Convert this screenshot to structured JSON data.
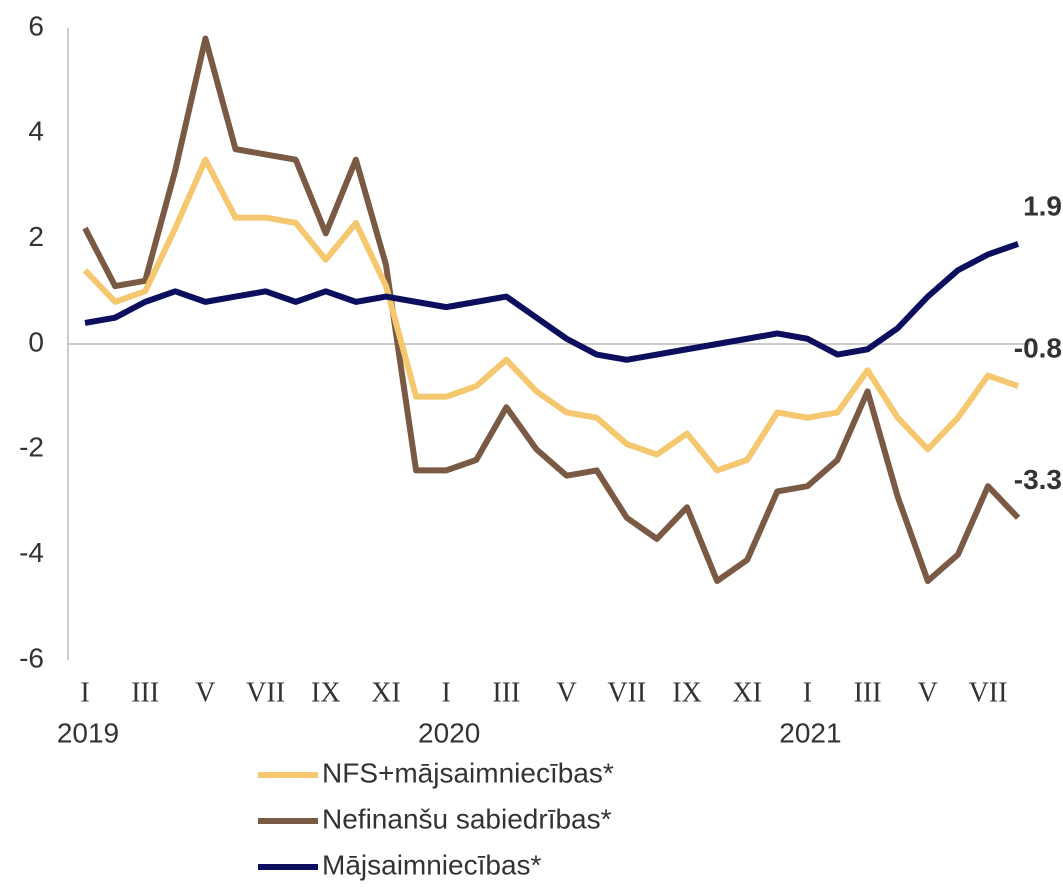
{
  "chart_data": {
    "type": "line",
    "categories": [
      "I",
      null,
      "III",
      null,
      "V",
      null,
      "VII",
      null,
      "IX",
      null,
      "XI",
      null,
      "I",
      null,
      "III",
      null,
      "V",
      null,
      "VII",
      null,
      "IX",
      null,
      "XI",
      null,
      "I",
      null,
      "III",
      null,
      "V",
      null,
      "VII",
      null
    ],
    "year_categories": [
      "2019",
      null,
      null,
      null,
      null,
      null,
      null,
      null,
      null,
      null,
      null,
      null,
      "2020",
      null,
      null,
      null,
      null,
      null,
      null,
      null,
      null,
      null,
      null,
      null,
      "2021",
      null,
      null,
      null,
      null,
      null,
      null,
      null
    ],
    "ylim": [
      -6,
      6
    ],
    "yticks": [
      -6,
      -4,
      -2,
      0,
      2,
      4,
      6
    ],
    "series": [
      {
        "name": "NFS+mājsaimniecības*",
        "color": "#f5c76e",
        "values": [
          1.4,
          0.8,
          1.0,
          2.2,
          3.5,
          2.4,
          2.4,
          2.3,
          1.6,
          2.3,
          1.1,
          -1.0,
          -1.0,
          -0.8,
          -0.3,
          -0.9,
          -1.3,
          -1.4,
          -1.9,
          -2.1,
          -1.7,
          -2.4,
          -2.2,
          -1.3,
          -1.4,
          -1.3,
          -0.5,
          -1.4,
          -2.0,
          -1.4,
          -0.6,
          -0.8
        ],
        "value_labels": [
          null,
          null,
          null,
          null,
          null,
          null,
          null,
          null,
          null,
          null,
          null,
          null,
          null,
          null,
          null,
          null,
          null,
          null,
          null,
          null,
          null,
          null,
          null,
          null,
          null,
          null,
          null,
          null,
          null,
          null,
          null,
          "-0.8"
        ]
      },
      {
        "name": "Nefinanšu sabiedrības*",
        "color": "#7a5a45",
        "values": [
          2.2,
          1.1,
          1.2,
          3.3,
          5.8,
          3.7,
          3.6,
          3.5,
          2.1,
          3.5,
          1.5,
          -2.4,
          -2.4,
          -2.2,
          -1.2,
          -2.0,
          -2.5,
          -2.4,
          -3.3,
          -3.7,
          -3.1,
          -4.5,
          -4.1,
          -2.8,
          -2.7,
          -2.2,
          -0.9,
          -2.9,
          -4.5,
          -4.0,
          -2.7,
          -3.3
        ],
        "value_labels": [
          null,
          null,
          null,
          null,
          null,
          null,
          null,
          null,
          null,
          null,
          null,
          null,
          null,
          null,
          null,
          null,
          null,
          null,
          null,
          null,
          null,
          null,
          null,
          null,
          null,
          null,
          null,
          null,
          null,
          null,
          null,
          "-3.3"
        ]
      },
      {
        "name": "Mājsaimniecības*",
        "color": "#0b0f5e",
        "values": [
          0.4,
          0.5,
          0.8,
          1.0,
          0.8,
          0.9,
          1.0,
          0.8,
          1.0,
          0.8,
          0.9,
          0.8,
          0.7,
          0.8,
          0.9,
          0.5,
          0.1,
          -0.2,
          -0.3,
          -0.2,
          -0.1,
          0.0,
          0.1,
          0.2,
          0.1,
          -0.2,
          -0.1,
          0.3,
          0.9,
          1.4,
          1.7,
          1.9
        ],
        "value_labels": [
          null,
          null,
          null,
          null,
          null,
          null,
          null,
          null,
          null,
          null,
          null,
          null,
          null,
          null,
          null,
          null,
          null,
          null,
          null,
          null,
          null,
          null,
          null,
          null,
          null,
          null,
          null,
          null,
          null,
          null,
          null,
          "1.9"
        ]
      }
    ]
  }
}
